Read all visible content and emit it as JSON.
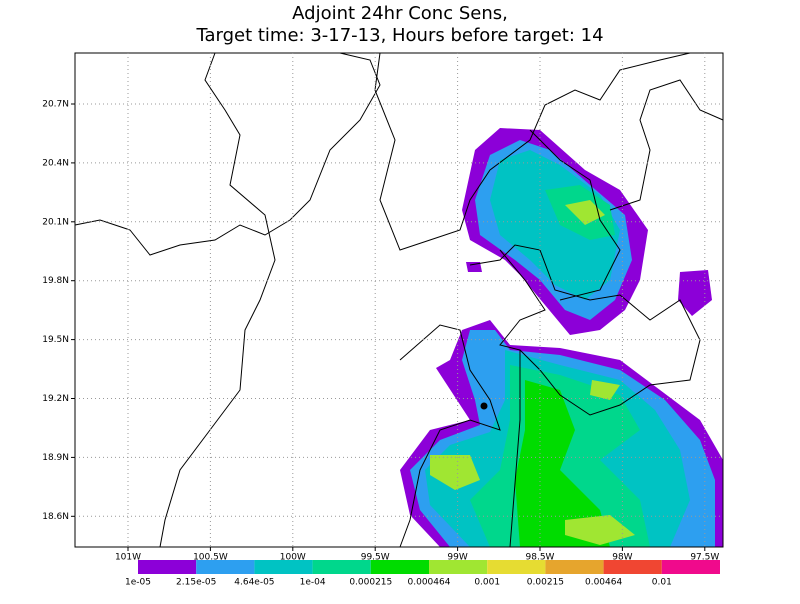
{
  "title": [
    "Adjoint 24hr Conc Sens,",
    "Target time: 3-17-13, Hours before target: 14"
  ],
  "lat_labels": [
    "20.7N",
    "20.4N",
    "20.1N",
    "19.8N",
    "19.5N",
    "19.2N",
    "18.9N",
    "18.6N"
  ],
  "lon_labels": [
    "101W",
    "100.5W",
    "100W",
    "99.5W",
    "99W",
    "98.5W",
    "98W",
    "97.5W"
  ],
  "colorbar": {
    "colors": [
      "#8c00d8",
      "#2d9ff0",
      "#00c3c3",
      "#00d78c",
      "#00dc00",
      "#a0e632",
      "#e6dc32",
      "#e6a52d",
      "#f04632",
      "#f00a8c"
    ],
    "labels": [
      "1e-05",
      "2.15e-05",
      "4.64e-05",
      "1e-04",
      "0.000215",
      "0.000464",
      "0.001",
      "0.00215",
      "0.00464",
      "0.01"
    ]
  }
}
